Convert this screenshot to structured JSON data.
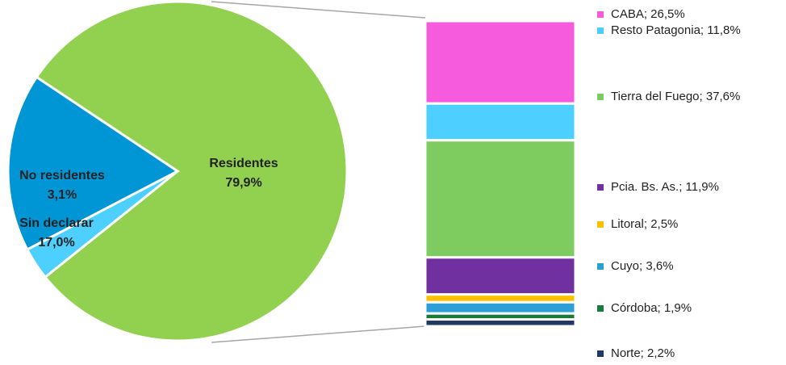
{
  "chart_data": [
    {
      "type": "pie",
      "categories": [
        "Residentes",
        "No residentes",
        "Sin declarar"
      ],
      "values": [
        79.9,
        3.1,
        17.0
      ],
      "value_labels": [
        "79,9%",
        "3,1%",
        "17,0%"
      ],
      "colors": [
        "#92d050",
        "#4dcfff",
        "#0096d6"
      ]
    },
    {
      "type": "stacked-bar",
      "labels": [
        "CABA; 26,5%",
        "Resto Patagonia; 11,8%",
        "Tierra del Fuego; 37,6%",
        "Pcia. Bs. As.; 11,9%",
        "Litoral; 2,5%",
        "Cuyo; 3,6%",
        "Córdoba; 1,9%",
        "Norte; 2,2%"
      ],
      "values": [
        26.5,
        11.8,
        37.6,
        11.9,
        2.5,
        3.6,
        1.9,
        2.2
      ],
      "colors": [
        "#f55bdc",
        "#4dcfff",
        "#7ecb60",
        "#7030a0",
        "#ffc000",
        "#2e9fd6",
        "#1a7a3a",
        "#1f3864"
      ]
    }
  ]
}
